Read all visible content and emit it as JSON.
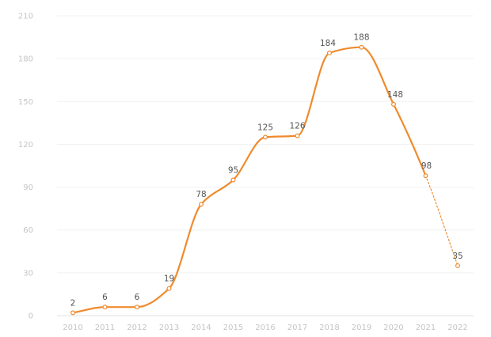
{
  "chart_data": {
    "type": "line",
    "title": "",
    "xlabel": "",
    "ylabel": "",
    "x": [
      "2010",
      "2011",
      "2012",
      "2013",
      "2014",
      "2015",
      "2016",
      "2017",
      "2018",
      "2019",
      "2020",
      "2021",
      "2022"
    ],
    "series": [
      {
        "values": [
          2,
          6,
          6,
          19,
          78,
          95,
          125,
          126,
          184,
          188,
          148,
          98,
          35
        ],
        "data_labels": [
          "2",
          "6",
          "6",
          "19",
          "78",
          "95",
          "125",
          "126",
          "184",
          "188",
          "148",
          "98",
          "35"
        ],
        "color": "#f08a2c",
        "dashed_from_index": 11
      }
    ],
    "ylim": [
      0,
      210
    ],
    "yticks": [
      "0",
      "30",
      "60",
      "90",
      "120",
      "150",
      "180",
      "210"
    ],
    "grid": true,
    "legend": "none"
  }
}
